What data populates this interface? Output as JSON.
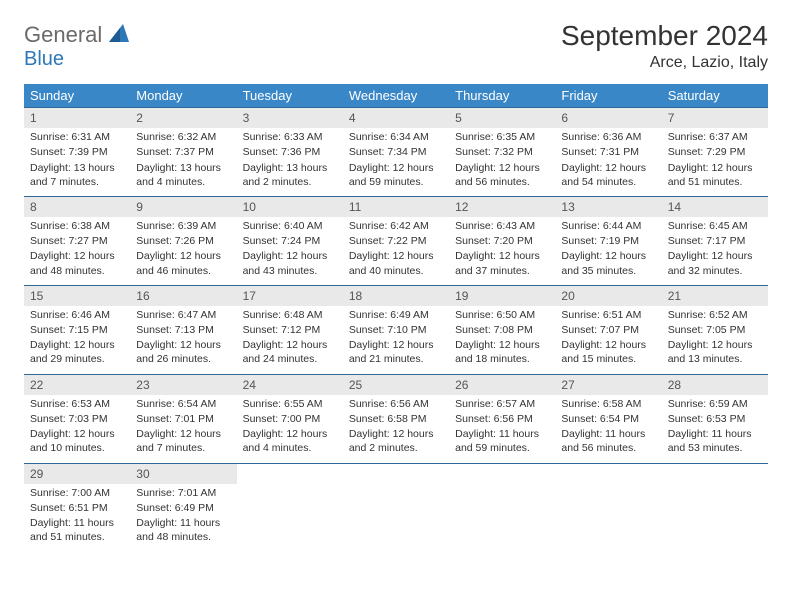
{
  "brand": {
    "line1": "General",
    "line2": "Blue",
    "text_color_top": "#6a6a6a",
    "text_color_bottom": "#2f78b8"
  },
  "title": "September 2024",
  "location": "Arce, Lazio, Italy",
  "colors": {
    "header_bg": "#3a87c7",
    "header_text": "#ffffff",
    "daynum_bg": "#e9e9e9",
    "row_border": "#2f6797",
    "body_text": "#333333",
    "page_bg": "#ffffff"
  },
  "day_headers": [
    "Sunday",
    "Monday",
    "Tuesday",
    "Wednesday",
    "Thursday",
    "Friday",
    "Saturday"
  ],
  "weeks": [
    [
      {
        "n": "1",
        "sunrise": "Sunrise: 6:31 AM",
        "sunset": "Sunset: 7:39 PM",
        "daylight": "Daylight: 13 hours and 7 minutes."
      },
      {
        "n": "2",
        "sunrise": "Sunrise: 6:32 AM",
        "sunset": "Sunset: 7:37 PM",
        "daylight": "Daylight: 13 hours and 4 minutes."
      },
      {
        "n": "3",
        "sunrise": "Sunrise: 6:33 AM",
        "sunset": "Sunset: 7:36 PM",
        "daylight": "Daylight: 13 hours and 2 minutes."
      },
      {
        "n": "4",
        "sunrise": "Sunrise: 6:34 AM",
        "sunset": "Sunset: 7:34 PM",
        "daylight": "Daylight: 12 hours and 59 minutes."
      },
      {
        "n": "5",
        "sunrise": "Sunrise: 6:35 AM",
        "sunset": "Sunset: 7:32 PM",
        "daylight": "Daylight: 12 hours and 56 minutes."
      },
      {
        "n": "6",
        "sunrise": "Sunrise: 6:36 AM",
        "sunset": "Sunset: 7:31 PM",
        "daylight": "Daylight: 12 hours and 54 minutes."
      },
      {
        "n": "7",
        "sunrise": "Sunrise: 6:37 AM",
        "sunset": "Sunset: 7:29 PM",
        "daylight": "Daylight: 12 hours and 51 minutes."
      }
    ],
    [
      {
        "n": "8",
        "sunrise": "Sunrise: 6:38 AM",
        "sunset": "Sunset: 7:27 PM",
        "daylight": "Daylight: 12 hours and 48 minutes."
      },
      {
        "n": "9",
        "sunrise": "Sunrise: 6:39 AM",
        "sunset": "Sunset: 7:26 PM",
        "daylight": "Daylight: 12 hours and 46 minutes."
      },
      {
        "n": "10",
        "sunrise": "Sunrise: 6:40 AM",
        "sunset": "Sunset: 7:24 PM",
        "daylight": "Daylight: 12 hours and 43 minutes."
      },
      {
        "n": "11",
        "sunrise": "Sunrise: 6:42 AM",
        "sunset": "Sunset: 7:22 PM",
        "daylight": "Daylight: 12 hours and 40 minutes."
      },
      {
        "n": "12",
        "sunrise": "Sunrise: 6:43 AM",
        "sunset": "Sunset: 7:20 PM",
        "daylight": "Daylight: 12 hours and 37 minutes."
      },
      {
        "n": "13",
        "sunrise": "Sunrise: 6:44 AM",
        "sunset": "Sunset: 7:19 PM",
        "daylight": "Daylight: 12 hours and 35 minutes."
      },
      {
        "n": "14",
        "sunrise": "Sunrise: 6:45 AM",
        "sunset": "Sunset: 7:17 PM",
        "daylight": "Daylight: 12 hours and 32 minutes."
      }
    ],
    [
      {
        "n": "15",
        "sunrise": "Sunrise: 6:46 AM",
        "sunset": "Sunset: 7:15 PM",
        "daylight": "Daylight: 12 hours and 29 minutes."
      },
      {
        "n": "16",
        "sunrise": "Sunrise: 6:47 AM",
        "sunset": "Sunset: 7:13 PM",
        "daylight": "Daylight: 12 hours and 26 minutes."
      },
      {
        "n": "17",
        "sunrise": "Sunrise: 6:48 AM",
        "sunset": "Sunset: 7:12 PM",
        "daylight": "Daylight: 12 hours and 24 minutes."
      },
      {
        "n": "18",
        "sunrise": "Sunrise: 6:49 AM",
        "sunset": "Sunset: 7:10 PM",
        "daylight": "Daylight: 12 hours and 21 minutes."
      },
      {
        "n": "19",
        "sunrise": "Sunrise: 6:50 AM",
        "sunset": "Sunset: 7:08 PM",
        "daylight": "Daylight: 12 hours and 18 minutes."
      },
      {
        "n": "20",
        "sunrise": "Sunrise: 6:51 AM",
        "sunset": "Sunset: 7:07 PM",
        "daylight": "Daylight: 12 hours and 15 minutes."
      },
      {
        "n": "21",
        "sunrise": "Sunrise: 6:52 AM",
        "sunset": "Sunset: 7:05 PM",
        "daylight": "Daylight: 12 hours and 13 minutes."
      }
    ],
    [
      {
        "n": "22",
        "sunrise": "Sunrise: 6:53 AM",
        "sunset": "Sunset: 7:03 PM",
        "daylight": "Daylight: 12 hours and 10 minutes."
      },
      {
        "n": "23",
        "sunrise": "Sunrise: 6:54 AM",
        "sunset": "Sunset: 7:01 PM",
        "daylight": "Daylight: 12 hours and 7 minutes."
      },
      {
        "n": "24",
        "sunrise": "Sunrise: 6:55 AM",
        "sunset": "Sunset: 7:00 PM",
        "daylight": "Daylight: 12 hours and 4 minutes."
      },
      {
        "n": "25",
        "sunrise": "Sunrise: 6:56 AM",
        "sunset": "Sunset: 6:58 PM",
        "daylight": "Daylight: 12 hours and 2 minutes."
      },
      {
        "n": "26",
        "sunrise": "Sunrise: 6:57 AM",
        "sunset": "Sunset: 6:56 PM",
        "daylight": "Daylight: 11 hours and 59 minutes."
      },
      {
        "n": "27",
        "sunrise": "Sunrise: 6:58 AM",
        "sunset": "Sunset: 6:54 PM",
        "daylight": "Daylight: 11 hours and 56 minutes."
      },
      {
        "n": "28",
        "sunrise": "Sunrise: 6:59 AM",
        "sunset": "Sunset: 6:53 PM",
        "daylight": "Daylight: 11 hours and 53 minutes."
      }
    ],
    [
      {
        "n": "29",
        "sunrise": "Sunrise: 7:00 AM",
        "sunset": "Sunset: 6:51 PM",
        "daylight": "Daylight: 11 hours and 51 minutes."
      },
      {
        "n": "30",
        "sunrise": "Sunrise: 7:01 AM",
        "sunset": "Sunset: 6:49 PM",
        "daylight": "Daylight: 11 hours and 48 minutes."
      },
      null,
      null,
      null,
      null,
      null
    ]
  ]
}
